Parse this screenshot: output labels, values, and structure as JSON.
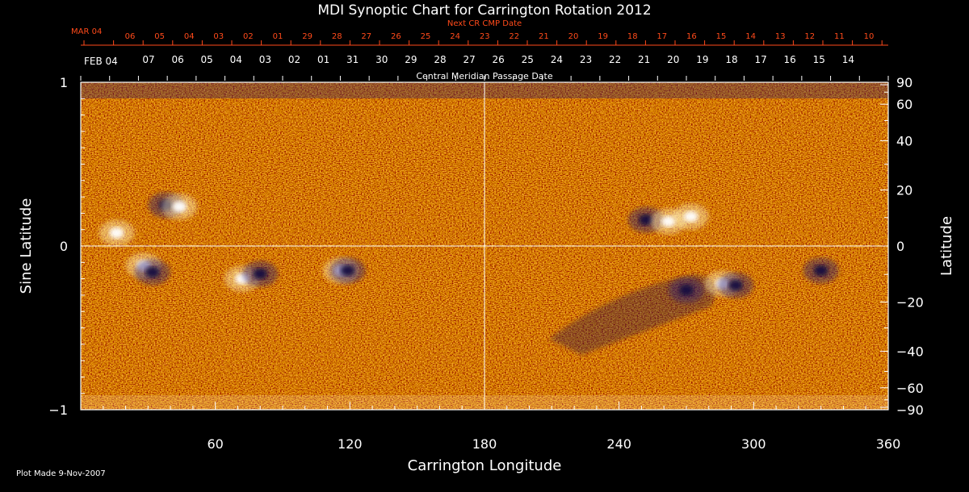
{
  "chart_data": {
    "type": "heatmap",
    "title": "MDI Synoptic Chart for Carrington Rotation 2012",
    "xlabel": "Carrington Longitude",
    "ylabel_left": "Sine Latitude",
    "ylabel_right": "Latitude",
    "xlim": [
      0,
      360
    ],
    "ylim": [
      -1,
      1
    ],
    "x_ticks": [
      60,
      120,
      180,
      240,
      300,
      360
    ],
    "y_ticks_left": [
      {
        "value": 1,
        "label": "1"
      },
      {
        "value": 0,
        "label": "0"
      },
      {
        "value": -1,
        "label": "−1"
      }
    ],
    "y_ticks_right": [
      {
        "deg": 90,
        "label": "90"
      },
      {
        "deg": 60,
        "label": "60"
      },
      {
        "deg": 40,
        "label": "40"
      },
      {
        "deg": 20,
        "label": "20"
      },
      {
        "deg": 0,
        "label": "0"
      },
      {
        "deg": -20,
        "label": "−20"
      },
      {
        "deg": -40,
        "label": "−40"
      },
      {
        "deg": -60,
        "label": "−60"
      },
      {
        "deg": -90,
        "label": "−90"
      }
    ],
    "cmp_date_axis": {
      "label": "Central Meridian Passage Date",
      "month_label": "FEB 04",
      "dates": [
        "07",
        "06",
        "05",
        "04",
        "03",
        "02",
        "01",
        "31",
        "30",
        "29",
        "28",
        "27",
        "26",
        "25",
        "24",
        "23",
        "22",
        "21",
        "20",
        "19",
        "18",
        "17",
        "16",
        "15",
        "14"
      ]
    },
    "next_cmp_date_axis": {
      "label": "Next CR CMP Date",
      "month_label": "MAR 04",
      "dates": [
        "06",
        "05",
        "04",
        "03",
        "02",
        "01",
        "29",
        "28",
        "27",
        "26",
        "25",
        "24",
        "23",
        "22",
        "21",
        "20",
        "19",
        "18",
        "17",
        "16",
        "15",
        "14",
        "13",
        "12",
        "11",
        "10"
      ]
    },
    "active_regions": [
      {
        "lon": 38,
        "sinlat": 0.25,
        "polarity": "negative"
      },
      {
        "lon": 44,
        "sinlat": 0.24,
        "polarity": "positive"
      },
      {
        "lon": 16,
        "sinlat": 0.08,
        "polarity": "positive"
      },
      {
        "lon": 28,
        "sinlat": -0.12,
        "polarity": "positive"
      },
      {
        "lon": 32,
        "sinlat": -0.16,
        "polarity": "negative"
      },
      {
        "lon": 72,
        "sinlat": -0.2,
        "polarity": "positive"
      },
      {
        "lon": 80,
        "sinlat": -0.17,
        "polarity": "negative"
      },
      {
        "lon": 116,
        "sinlat": -0.15,
        "polarity": "positive"
      },
      {
        "lon": 119,
        "sinlat": -0.15,
        "polarity": "negative"
      },
      {
        "lon": 252,
        "sinlat": 0.16,
        "polarity": "negative"
      },
      {
        "lon": 262,
        "sinlat": 0.15,
        "polarity": "positive"
      },
      {
        "lon": 272,
        "sinlat": 0.18,
        "polarity": "positive"
      },
      {
        "lon": 286,
        "sinlat": -0.23,
        "polarity": "positive"
      },
      {
        "lon": 292,
        "sinlat": -0.24,
        "polarity": "negative"
      },
      {
        "lon": 270,
        "sinlat": -0.27,
        "polarity": "negative"
      },
      {
        "lon": 330,
        "sinlat": -0.15,
        "polarity": "negative"
      }
    ],
    "grid": false,
    "colormap": [
      "#1a1050",
      "#b31500",
      "#ff5a12",
      "#ffffff"
    ]
  },
  "footer": {
    "plot_made": "Plot Made  9-Nov-2007"
  }
}
